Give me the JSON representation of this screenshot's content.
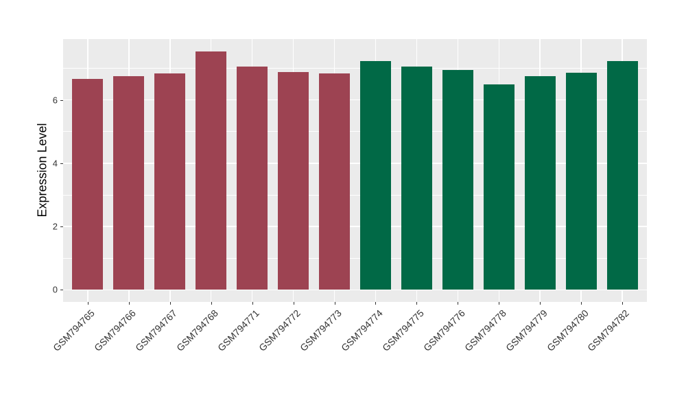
{
  "chart_data": {
    "type": "bar",
    "title": "",
    "xlabel": "",
    "ylabel": "Expression Level",
    "categories": [
      "GSM794765",
      "GSM794766",
      "GSM794767",
      "GSM794768",
      "GSM794771",
      "GSM794772",
      "GSM794773",
      "GSM794774",
      "GSM794775",
      "GSM794776",
      "GSM794778",
      "GSM794779",
      "GSM794780",
      "GSM794782"
    ],
    "values": [
      6.67,
      6.76,
      6.84,
      7.53,
      7.05,
      6.89,
      6.84,
      7.22,
      7.05,
      6.94,
      6.48,
      6.75,
      6.85,
      7.22
    ],
    "bar_colors": [
      "#9D4352",
      "#9D4352",
      "#9D4352",
      "#9D4352",
      "#9D4352",
      "#9D4352",
      "#9D4352",
      "#016946",
      "#016946",
      "#016946",
      "#016946",
      "#016946",
      "#016946",
      "#016946"
    ],
    "group_colors": {
      "left_group": "#9D4352",
      "right_group": "#016946"
    },
    "yticks": [
      0,
      2,
      4,
      6
    ],
    "minor_yticks": [
      1,
      3,
      5,
      7
    ],
    "ylim": [
      -0.38,
      7.92
    ],
    "bar_rel_width": 0.75,
    "grid": "on",
    "grid_color": "#FFFFFF",
    "panel_bg": "#EBEBEB",
    "axis_text_color": "#333333",
    "legend": "none"
  }
}
